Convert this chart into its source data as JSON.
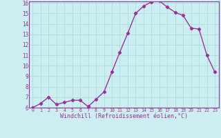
{
  "x": [
    0,
    1,
    2,
    3,
    4,
    5,
    6,
    7,
    8,
    9,
    10,
    11,
    12,
    13,
    14,
    15,
    16,
    17,
    18,
    19,
    20,
    21,
    22,
    23
  ],
  "y": [
    6.0,
    6.4,
    7.0,
    6.3,
    6.5,
    6.7,
    6.7,
    6.1,
    6.8,
    7.5,
    9.4,
    11.3,
    13.1,
    15.0,
    15.7,
    16.1,
    16.2,
    15.6,
    15.1,
    14.8,
    13.6,
    13.5,
    11.0,
    9.4
  ],
  "line_color": "#993399",
  "marker": "D",
  "markersize": 2.2,
  "linewidth": 1.0,
  "bg_color": "#cceef0",
  "grid_color": "#aadddd",
  "xlabel": "Windchill (Refroidissement éolien,°C)",
  "xlabel_color": "#993399",
  "tick_color": "#993399",
  "axis_color": "#993399",
  "ylim": [
    6,
    16
  ],
  "yticks": [
    6,
    7,
    8,
    9,
    10,
    11,
    12,
    13,
    14,
    15,
    16
  ],
  "xticks": [
    0,
    1,
    2,
    3,
    4,
    5,
    6,
    7,
    8,
    9,
    10,
    11,
    12,
    13,
    14,
    15,
    16,
    17,
    18,
    19,
    20,
    21,
    22,
    23
  ],
  "xlim": [
    -0.5,
    23.5
  ]
}
